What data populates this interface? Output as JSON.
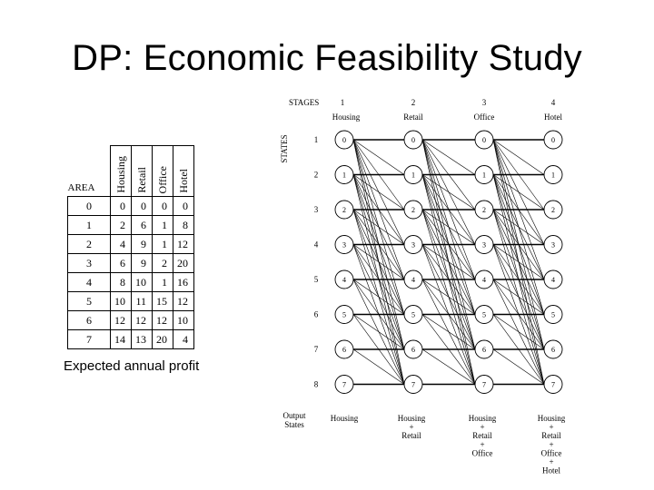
{
  "slide": {
    "title": "DP: Economic Feasibility Study"
  },
  "table": {
    "corner_label": "AREA",
    "columns": [
      "Housing",
      "Retail",
      "Office",
      "Hotel"
    ],
    "rows": [
      {
        "area": "0",
        "values": [
          "0",
          "0",
          "0",
          "0"
        ]
      },
      {
        "area": "1",
        "values": [
          "2",
          "6",
          "1",
          "8"
        ]
      },
      {
        "area": "2",
        "values": [
          "4",
          "9",
          "1",
          "12"
        ]
      },
      {
        "area": "3",
        "values": [
          "6",
          "9",
          "2",
          "20"
        ]
      },
      {
        "area": "4",
        "values": [
          "8",
          "10",
          "1",
          "16"
        ]
      },
      {
        "area": "5",
        "values": [
          "10",
          "11",
          "15",
          "12"
        ]
      },
      {
        "area": "6",
        "values": [
          "12",
          "12",
          "12",
          "10"
        ]
      },
      {
        "area": "7",
        "values": [
          "14",
          "13",
          "20",
          "4"
        ]
      }
    ],
    "caption": "Expected annual profit"
  },
  "diagram": {
    "stages_label": "STAGES",
    "states_label": "STATES",
    "stages": [
      {
        "number": "1",
        "name": "Housing"
      },
      {
        "number": "2",
        "name": "Retail"
      },
      {
        "number": "3",
        "name": "Office"
      },
      {
        "number": "4",
        "name": "Hotel"
      }
    ],
    "states": [
      "1",
      "2",
      "3",
      "4",
      "5",
      "6",
      "7",
      "8"
    ],
    "node_labels": [
      "0",
      "1",
      "2",
      "3",
      "4",
      "5",
      "6",
      "7"
    ],
    "output_states_label": [
      "Output",
      "States"
    ],
    "outputs": [
      [
        "Housing"
      ],
      [
        "Housing",
        "+",
        "Retail"
      ],
      [
        "Housing",
        "+",
        "Retail",
        "+",
        "Office"
      ],
      [
        "Housing",
        "+",
        "Retail",
        "+",
        "Office",
        "+",
        "Hotel"
      ]
    ]
  }
}
